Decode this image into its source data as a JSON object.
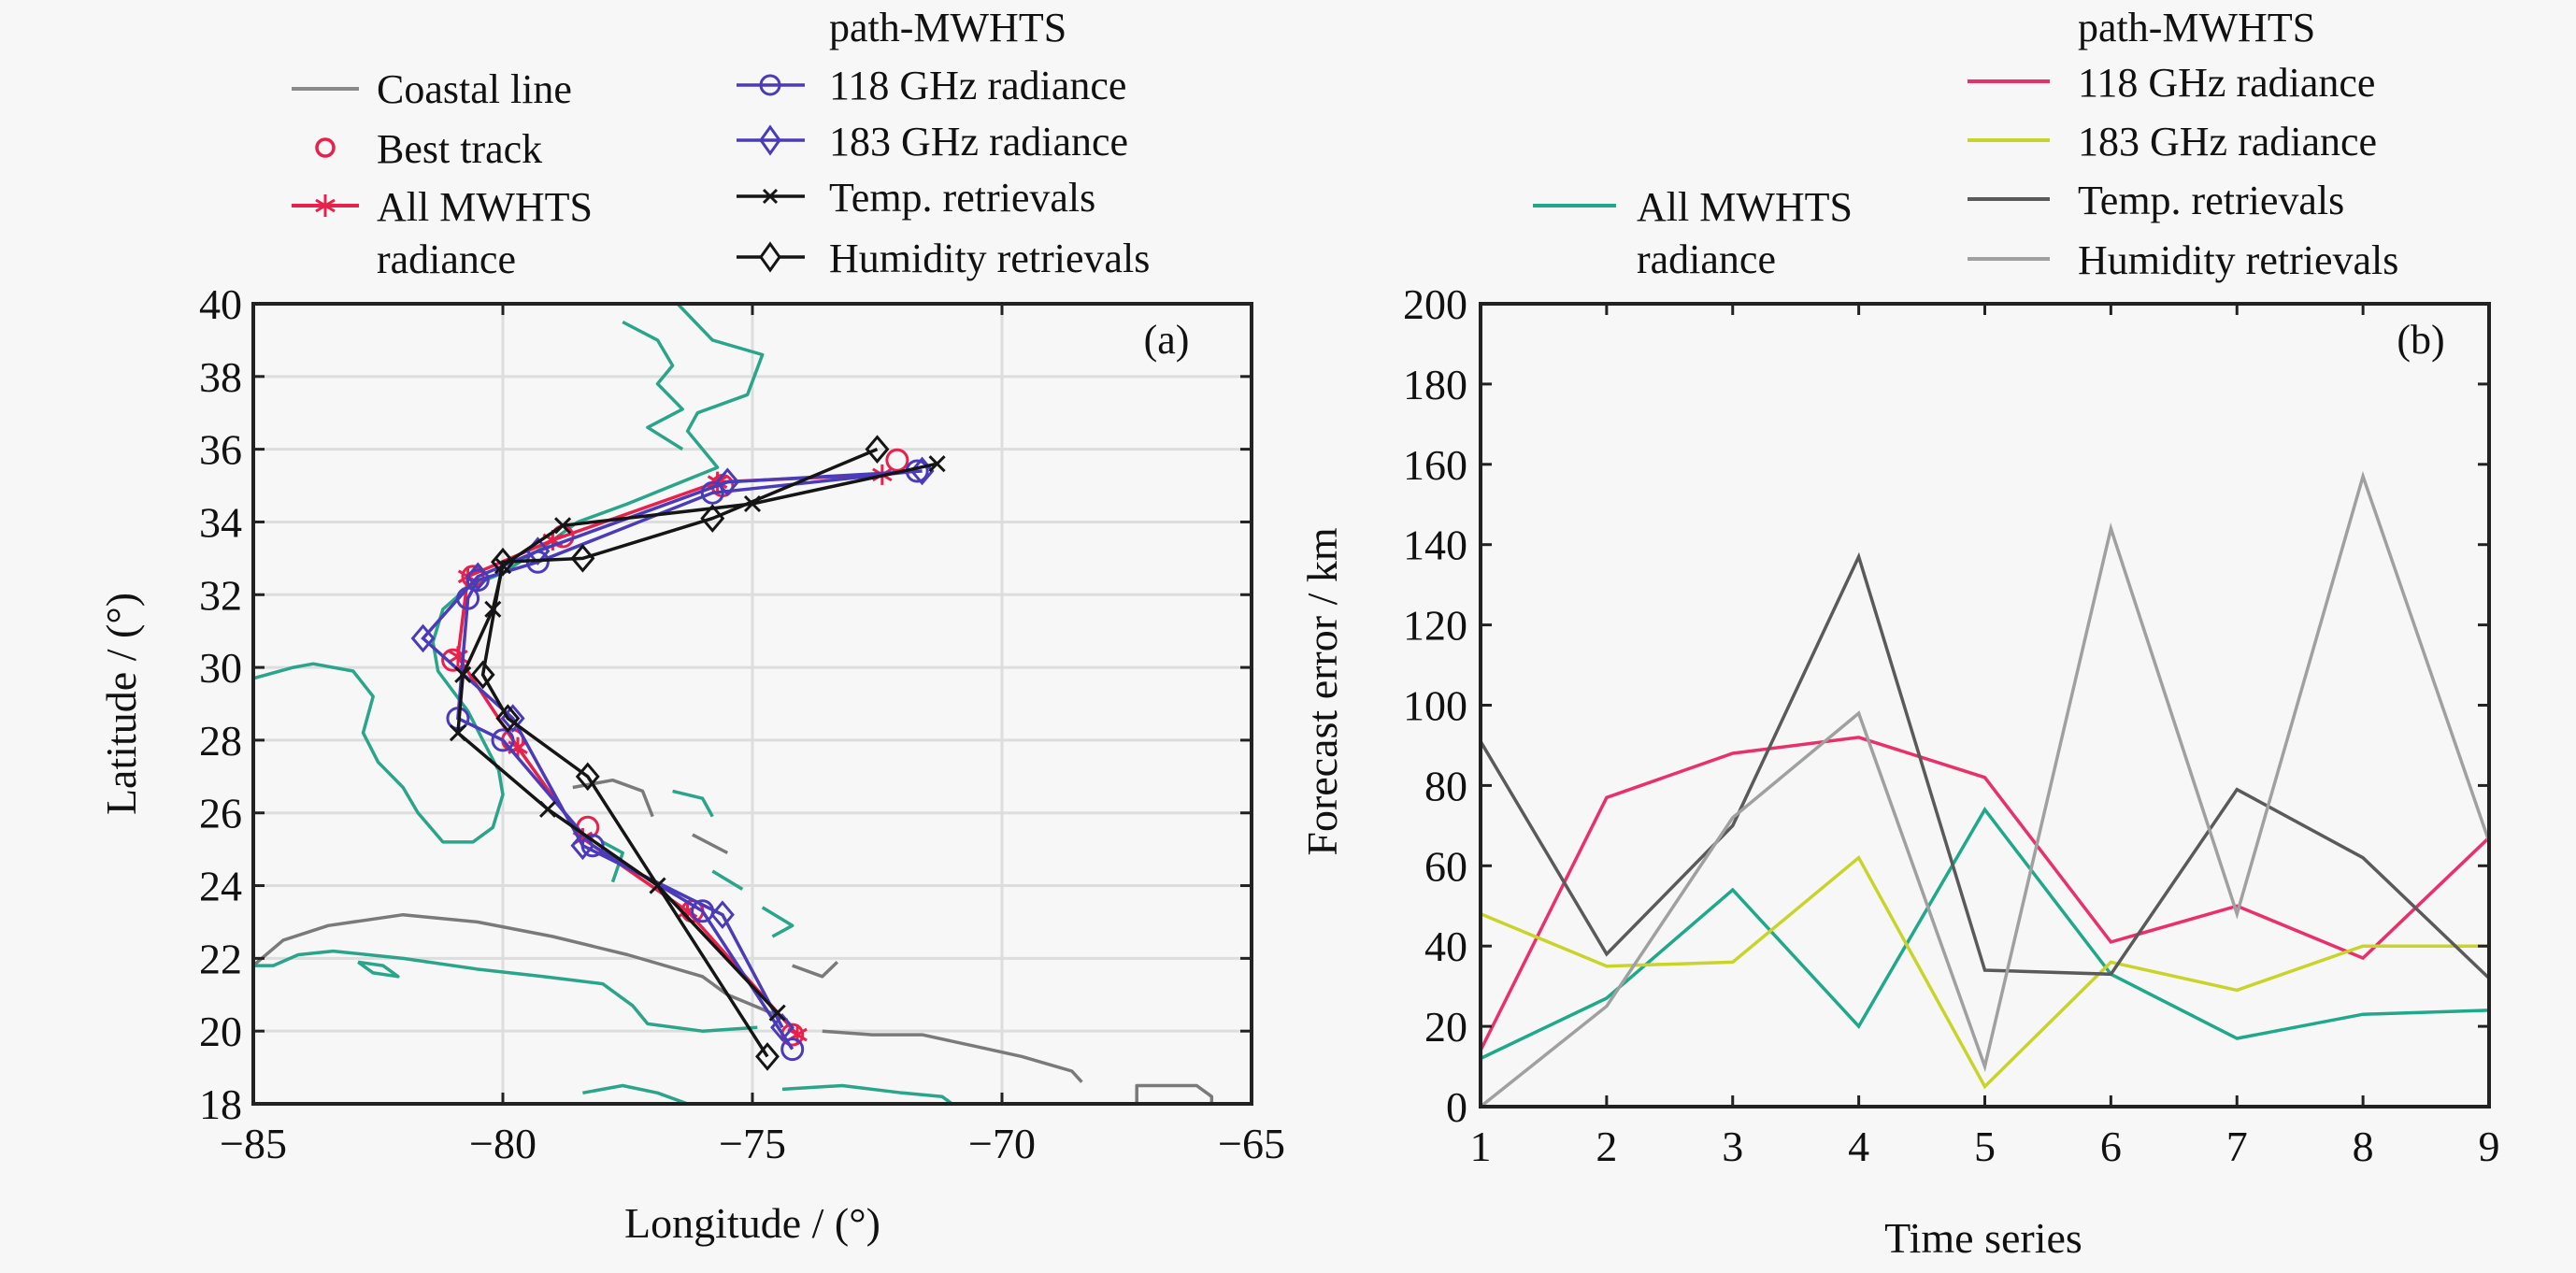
{
  "chart_data": [
    {
      "id": "a",
      "type": "line",
      "panel_label": "(a)",
      "title": "",
      "xlabel": "Longitude / (°)",
      "ylabel": "Latitude / (°)",
      "xlim": [
        -85,
        -65
      ],
      "ylim": [
        18,
        40
      ],
      "xticks": [
        -85,
        -80,
        -75,
        -70,
        -65
      ],
      "xtick_labels": [
        "−85",
        "−80",
        "−75",
        "−70",
        "−65"
      ],
      "yticks": [
        18,
        20,
        22,
        24,
        26,
        28,
        30,
        32,
        34,
        36,
        38,
        40
      ],
      "ytick_labels": [
        "18",
        "20",
        "22",
        "24",
        "26",
        "28",
        "30",
        "32",
        "34",
        "36",
        "38",
        "40"
      ],
      "grid": true,
      "legend": {
        "columns": [
          {
            "heading": "",
            "entries": [
              {
                "label": "Coastal line",
                "series": "coast"
              },
              {
                "label": "Best track",
                "series": "best"
              },
              {
                "label": "All MWHTS",
                "label2": "radiance",
                "series": "all"
              }
            ]
          },
          {
            "heading": "path-MWHTS",
            "entries": [
              {
                "label": "118 GHz radiance",
                "series": "r118"
              },
              {
                "label": "183 GHz radiance",
                "series": "r183"
              },
              {
                "label": "Temp. retrievals",
                "series": "temp"
              },
              {
                "label": "Humidity retrievals",
                "series": "hum"
              }
            ]
          }
        ],
        "placement": "top"
      },
      "coastlines": [
        {
          "name": "florida-gulf-coast",
          "points": [
            [
              -85,
              29.7
            ],
            [
              -84.2,
              30.0
            ],
            [
              -83.8,
              30.1
            ],
            [
              -83.0,
              29.9
            ],
            [
              -82.6,
              29.2
            ],
            [
              -82.8,
              28.2
            ],
            [
              -82.5,
              27.4
            ],
            [
              -82.0,
              26.7
            ],
            [
              -81.7,
              26.0
            ],
            [
              -81.2,
              25.2
            ],
            [
              -80.6,
              25.2
            ],
            [
              -80.2,
              25.6
            ],
            [
              -80.0,
              26.5
            ],
            [
              -80.1,
              27.3
            ]
          ]
        },
        {
          "name": "cuba-north",
          "points": [
            [
              -85,
              21.8
            ],
            [
              -84.4,
              22.5
            ],
            [
              -83.5,
              22.9
            ],
            [
              -82.0,
              23.2
            ],
            [
              -80.5,
              23.0
            ],
            [
              -79.0,
              22.6
            ],
            [
              -77.5,
              22.1
            ],
            [
              -76.0,
              21.5
            ],
            [
              -75.5,
              21.0
            ],
            [
              -74.8,
              20.6
            ],
            [
              -74.3,
              20.3
            ]
          ]
        },
        {
          "name": "cuba-south",
          "points": [
            [
              -85,
              21.8
            ],
            [
              -84.6,
              21.8
            ],
            [
              -84.1,
              22.1
            ],
            [
              -83.4,
              22.2
            ],
            [
              -82.0,
              22.0
            ],
            [
              -80.5,
              21.7
            ],
            [
              -79.2,
              21.5
            ],
            [
              -78.0,
              21.3
            ],
            [
              -77.4,
              20.7
            ],
            [
              -77.1,
              20.2
            ],
            [
              -76.0,
              20.0
            ],
            [
              -74.9,
              20.1
            ]
          ]
        },
        {
          "name": "isle-of-youth",
          "points": [
            [
              -82.9,
              21.9
            ],
            [
              -82.6,
              21.6
            ],
            [
              -82.1,
              21.5
            ],
            [
              -82.4,
              21.8
            ],
            [
              -82.9,
              21.9
            ]
          ]
        },
        {
          "name": "hispaniola-north",
          "points": [
            [
              -73.6,
              20.0
            ],
            [
              -72.6,
              19.9
            ],
            [
              -71.6,
              19.9
            ],
            [
              -70.6,
              19.6
            ],
            [
              -69.6,
              19.3
            ],
            [
              -68.6,
              18.9
            ],
            [
              -68.4,
              18.6
            ]
          ]
        },
        {
          "name": "hispaniola-south",
          "points": [
            [
              -74.4,
              18.4
            ],
            [
              -73.2,
              18.5
            ],
            [
              -72.0,
              18.3
            ],
            [
              -71.2,
              18.2
            ],
            [
              -71.0,
              18.0
            ]
          ]
        },
        {
          "name": "jamaica",
          "points": [
            [
              -78.4,
              18.3
            ],
            [
              -77.6,
              18.5
            ],
            [
              -76.9,
              18.3
            ],
            [
              -76.3,
              18.0
            ]
          ]
        },
        {
          "name": "puerto-rico",
          "points": [
            [
              -67.3,
              18.0
            ],
            [
              -67.3,
              18.5
            ],
            [
              -66.1,
              18.5
            ],
            [
              -65.8,
              18.2
            ],
            [
              -65.8,
              18.0
            ]
          ]
        },
        {
          "name": "us-east-coast",
          "points": [
            [
              -76.5,
              40.0
            ],
            [
              -75.8,
              39.0
            ],
            [
              -74.8,
              38.6
            ],
            [
              -75.1,
              37.5
            ],
            [
              -76.1,
              37.0
            ],
            [
              -76.3,
              36.5
            ],
            [
              -75.7,
              35.5
            ],
            [
              -76.6,
              35.0
            ],
            [
              -77.5,
              34.5
            ],
            [
              -78.5,
              34.0
            ],
            [
              -79.2,
              33.3
            ],
            [
              -80.0,
              32.6
            ],
            [
              -80.7,
              32.2
            ],
            [
              -81.2,
              31.6
            ],
            [
              -81.4,
              30.7
            ],
            [
              -81.3,
              29.9
            ],
            [
              -80.7,
              28.8
            ],
            [
              -80.4,
              28.0
            ],
            [
              -80.1,
              27.2
            ]
          ]
        },
        {
          "name": "chesapeake",
          "points": [
            [
              -77.6,
              39.5
            ],
            [
              -76.9,
              39.0
            ],
            [
              -76.6,
              38.3
            ],
            [
              -76.9,
              37.8
            ],
            [
              -76.4,
              37.1
            ],
            [
              -77.1,
              36.6
            ],
            [
              -76.4,
              36.0
            ]
          ]
        },
        {
          "name": "bahamas-1",
          "points": [
            [
              -78.6,
              26.7
            ],
            [
              -77.8,
              26.9
            ],
            [
              -77.2,
              26.6
            ],
            [
              -77.0,
              25.9
            ]
          ]
        },
        {
          "name": "bahamas-2",
          "points": [
            [
              -78.0,
              25.2
            ],
            [
              -77.6,
              24.9
            ],
            [
              -77.8,
              24.1
            ]
          ]
        },
        {
          "name": "bahamas-3",
          "points": [
            [
              -76.6,
              26.6
            ],
            [
              -76.0,
              26.4
            ],
            [
              -75.8,
              25.9
            ]
          ]
        },
        {
          "name": "bahamas-4",
          "points": [
            [
              -76.2,
              25.4
            ],
            [
              -75.5,
              24.9
            ]
          ]
        },
        {
          "name": "bahamas-5",
          "points": [
            [
              -75.8,
              24.4
            ],
            [
              -75.2,
              23.9
            ]
          ]
        },
        {
          "name": "bahamas-6",
          "points": [
            [
              -74.8,
              23.4
            ],
            [
              -74.2,
              22.9
            ],
            [
              -74.6,
              22.6
            ]
          ]
        },
        {
          "name": "bahamas-7",
          "points": [
            [
              -74.2,
              21.8
            ],
            [
              -73.6,
              21.5
            ],
            [
              -73.3,
              21.9
            ]
          ]
        }
      ],
      "series": [
        {
          "key": "best",
          "name": "Best track",
          "color": "#e8204c",
          "marker": "circle",
          "line": false,
          "points": [
            [
              -74.2,
              19.9
            ],
            [
              -76.2,
              23.3
            ],
            [
              -78.3,
              25.6
            ],
            [
              -79.8,
              28.0
            ],
            [
              -81.0,
              30.2
            ],
            [
              -80.6,
              32.5
            ],
            [
              -78.8,
              33.6
            ],
            [
              -75.6,
              35.0
            ],
            [
              -72.1,
              35.7
            ]
          ]
        },
        {
          "key": "all",
          "name": "All MWHTS radiance",
          "color": "#e8204c",
          "marker": "star",
          "line": true,
          "points": [
            [
              -74.1,
              19.9
            ],
            [
              -76.3,
              23.3
            ],
            [
              -78.4,
              25.3
            ],
            [
              -79.7,
              27.8
            ],
            [
              -80.9,
              30.3
            ],
            [
              -80.7,
              32.5
            ],
            [
              -79.0,
              33.5
            ],
            [
              -75.7,
              35.1
            ],
            [
              -72.4,
              35.3
            ]
          ]
        },
        {
          "key": "r118",
          "name": "118 GHz radiance",
          "color": "#4a3cb8",
          "marker": "circle",
          "line": true,
          "points": [
            [
              -74.2,
              19.5
            ],
            [
              -76.0,
              23.3
            ],
            [
              -78.2,
              25.1
            ],
            [
              -80.0,
              28.0
            ],
            [
              -80.9,
              28.6
            ],
            [
              -80.7,
              31.9
            ],
            [
              -80.5,
              32.4
            ],
            [
              -79.3,
              32.9
            ],
            [
              -75.8,
              34.8
            ],
            [
              -71.7,
              35.4
            ]
          ]
        },
        {
          "key": "r183",
          "name": "183 GHz radiance",
          "color": "#4a3cb8",
          "marker": "diamond",
          "line": true,
          "points": [
            [
              -74.4,
              20.1
            ],
            [
              -75.6,
              23.2
            ],
            [
              -78.4,
              25.1
            ],
            [
              -79.8,
              28.6
            ],
            [
              -81.6,
              30.8
            ],
            [
              -80.5,
              32.5
            ],
            [
              -79.3,
              33.2
            ],
            [
              -75.5,
              35.1
            ],
            [
              -71.6,
              35.4
            ]
          ]
        },
        {
          "key": "temp",
          "name": "Temp. retrievals",
          "color": "#151515",
          "marker": "x",
          "line": true,
          "points": [
            [
              -74.5,
              20.5
            ],
            [
              -76.9,
              24.0
            ],
            [
              -79.1,
              26.1
            ],
            [
              -80.9,
              28.2
            ],
            [
              -80.8,
              29.8
            ],
            [
              -80.2,
              31.6
            ],
            [
              -80.0,
              32.8
            ],
            [
              -78.8,
              33.9
            ],
            [
              -75.0,
              34.5
            ],
            [
              -71.3,
              35.6
            ]
          ]
        },
        {
          "key": "hum",
          "name": "Humidity retrievals",
          "color": "#151515",
          "marker": "diamond",
          "line": true,
          "points": [
            [
              -74.7,
              19.3
            ],
            [
              -78.3,
              27.0
            ],
            [
              -79.9,
              28.6
            ],
            [
              -80.4,
              29.8
            ],
            [
              -80.0,
              32.9
            ],
            [
              -78.4,
              33.0
            ],
            [
              -75.8,
              34.1
            ],
            [
              -72.5,
              36.0
            ]
          ]
        }
      ]
    },
    {
      "id": "b",
      "type": "line",
      "panel_label": "(b)",
      "title": "",
      "xlabel": "Time series",
      "ylabel": "Forecast error / km",
      "xlim": [
        1,
        9
      ],
      "ylim": [
        0,
        200
      ],
      "xticks": [
        1,
        2,
        3,
        4,
        5,
        6,
        7,
        8,
        9
      ],
      "xtick_labels": [
        "1",
        "2",
        "3",
        "4",
        "5",
        "6",
        "7",
        "8",
        "9"
      ],
      "yticks": [
        0,
        20,
        40,
        60,
        80,
        100,
        120,
        140,
        160,
        180,
        200
      ],
      "ytick_labels": [
        "0",
        "20",
        "40",
        "60",
        "80",
        "100",
        "120",
        "140",
        "160",
        "180",
        "200"
      ],
      "grid": false,
      "x": [
        1,
        2,
        3,
        4,
        5,
        6,
        7,
        8,
        9
      ],
      "legend": {
        "columns": [
          {
            "heading": "",
            "entries": [
              {
                "label": "All MWHTS",
                "label2": "radiance",
                "series": "all"
              }
            ]
          },
          {
            "heading": "path-MWHTS",
            "entries": [
              {
                "label": "118 GHz radiance",
                "series": "r118"
              },
              {
                "label": "183 GHz radiance",
                "series": "r183"
              },
              {
                "label": "Temp. retrievals",
                "series": "temp"
              },
              {
                "label": "Humidity retrievals",
                "series": "hum"
              }
            ]
          }
        ],
        "placement": "top"
      },
      "series": [
        {
          "key": "all",
          "name": "All MWHTS radiance",
          "color": "#1fa88a",
          "values": [
            12,
            27,
            54,
            20,
            74,
            33,
            17,
            23,
            24
          ]
        },
        {
          "key": "r118",
          "name": "118 GHz radiance",
          "color": "#e8306a",
          "values": [
            14,
            77,
            88,
            92,
            82,
            41,
            50,
            37,
            67
          ]
        },
        {
          "key": "r183",
          "name": "183 GHz radiance",
          "color": "#c9d42a",
          "values": [
            48,
            35,
            36,
            62,
            5,
            36,
            29,
            40,
            40
          ]
        },
        {
          "key": "temp",
          "name": "Temp. retrievals",
          "color": "#5a5a5a",
          "values": [
            91,
            38,
            70,
            137,
            34,
            33,
            79,
            62,
            32
          ]
        },
        {
          "key": "hum",
          "name": "Humidity retrievals",
          "color": "#a0a0a0",
          "values": [
            0,
            25,
            72,
            98,
            10,
            144,
            48,
            157,
            66
          ]
        }
      ]
    }
  ],
  "colors": {
    "coast": "#2aa58a",
    "coast_alt": "#3f8fd0",
    "coast_gray": "#7a7a7a",
    "axis": "#222222",
    "grid": "#dddddd"
  }
}
